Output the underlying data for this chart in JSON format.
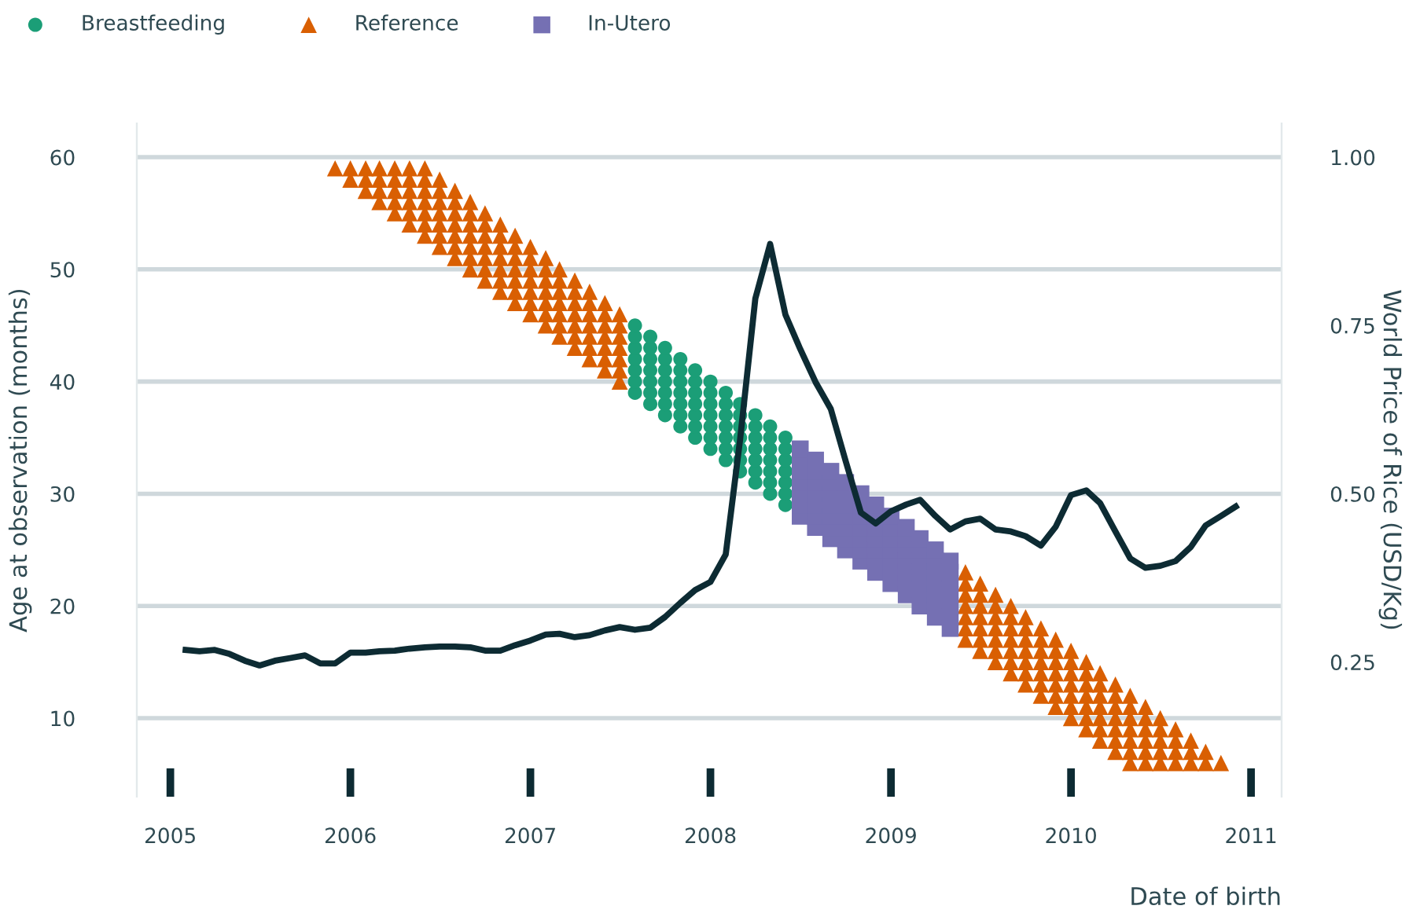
{
  "chart_data": {
    "type": "scatter",
    "xlabel": "Date of birth",
    "ylabel": "Age at observation (months)",
    "y2label": "World Price of Rice (USD/Kg)",
    "xlim": [
      "2004-10-25",
      "2011-03-04"
    ],
    "xticks": [
      {
        "value": "2005",
        "label": "2005"
      },
      {
        "value": "2006",
        "label": "2006"
      },
      {
        "value": "2007",
        "label": "2007"
      },
      {
        "value": "2008",
        "label": "2008"
      },
      {
        "value": "2009",
        "label": "2009"
      },
      {
        "value": "2010",
        "label": "2010"
      },
      {
        "value": "2011",
        "label": "2011"
      }
    ],
    "ylim": [
      3,
      63
    ],
    "yticks": [
      10,
      20,
      30,
      40,
      50,
      60
    ],
    "y2lim": [
      0.05,
      1.05
    ],
    "y2ticks": [
      {
        "value": 0.25,
        "label": "0.25"
      },
      {
        "value": 0.5,
        "label": "0.50"
      },
      {
        "value": 0.75,
        "label": "0.75"
      },
      {
        "value": 1.0,
        "label": "1.00"
      }
    ],
    "grid": "y",
    "legend": "top left",
    "series": [
      {
        "name": "Breastfeeding",
        "marker": "circle",
        "color": "#1b9e77",
        "x": [
          "2007-08",
          "2007-08",
          "2007-08",
          "2007-08",
          "2007-08",
          "2007-08",
          "2007-08",
          "2007-09",
          "2007-09",
          "2007-09",
          "2007-09",
          "2007-09",
          "2007-09",
          "2007-09",
          "2007-10",
          "2007-10",
          "2007-10",
          "2007-10",
          "2007-10",
          "2007-10",
          "2007-10",
          "2007-11",
          "2007-11",
          "2007-11",
          "2007-11",
          "2007-11",
          "2007-11",
          "2007-11",
          "2007-12",
          "2007-12",
          "2007-12",
          "2007-12",
          "2007-12",
          "2007-12",
          "2007-12",
          "2008-01",
          "2008-01",
          "2008-01",
          "2008-01",
          "2008-01",
          "2008-01",
          "2008-01",
          "2008-02",
          "2008-02",
          "2008-02",
          "2008-02",
          "2008-02",
          "2008-02",
          "2008-02",
          "2008-03",
          "2008-03",
          "2008-03",
          "2008-03",
          "2008-03",
          "2008-03",
          "2008-03",
          "2008-04",
          "2008-04",
          "2008-04",
          "2008-04",
          "2008-04",
          "2008-04",
          "2008-04",
          "2008-05",
          "2008-05",
          "2008-05",
          "2008-05",
          "2008-05",
          "2008-05",
          "2008-05",
          "2008-06",
          "2008-06",
          "2008-06",
          "2008-06",
          "2008-06",
          "2008-06",
          "2008-06"
        ],
        "values": [
          39,
          40,
          41,
          42,
          43,
          44,
          45,
          38,
          39,
          40,
          41,
          42,
          43,
          44,
          37,
          38,
          39,
          40,
          41,
          42,
          43,
          36,
          37,
          38,
          39,
          40,
          41,
          42,
          35,
          36,
          37,
          38,
          39,
          40,
          41,
          34,
          35,
          36,
          37,
          38,
          39,
          40,
          33,
          34,
          35,
          36,
          37,
          38,
          39,
          32,
          33,
          34,
          35,
          36,
          37,
          38,
          31,
          32,
          33,
          34,
          35,
          36,
          37,
          30,
          31,
          32,
          33,
          34,
          35,
          36,
          29,
          30,
          31,
          32,
          33,
          34,
          35
        ]
      },
      {
        "name": "Reference",
        "marker": "triangle",
        "color": "#d95f02",
        "x": [
          "2005-12",
          "2006-01",
          "2006-01",
          "2006-02",
          "2006-02",
          "2006-02",
          "2006-03",
          "2006-03",
          "2006-03",
          "2006-03",
          "2006-04",
          "2006-04",
          "2006-04",
          "2006-04",
          "2006-04",
          "2006-05",
          "2006-05",
          "2006-05",
          "2006-05",
          "2006-05",
          "2006-05",
          "2006-06",
          "2006-06",
          "2006-06",
          "2006-06",
          "2006-06",
          "2006-06",
          "2006-06",
          "2006-07",
          "2006-07",
          "2006-07",
          "2006-07",
          "2006-07",
          "2006-07",
          "2006-07",
          "2006-08",
          "2006-08",
          "2006-08",
          "2006-08",
          "2006-08",
          "2006-08",
          "2006-08",
          "2006-09",
          "2006-09",
          "2006-09",
          "2006-09",
          "2006-09",
          "2006-09",
          "2006-09",
          "2006-10",
          "2006-10",
          "2006-10",
          "2006-10",
          "2006-10",
          "2006-10",
          "2006-10",
          "2006-11",
          "2006-11",
          "2006-11",
          "2006-11",
          "2006-11",
          "2006-11",
          "2006-11",
          "2006-12",
          "2006-12",
          "2006-12",
          "2006-12",
          "2006-12",
          "2006-12",
          "2006-12",
          "2007-01",
          "2007-01",
          "2007-01",
          "2007-01",
          "2007-01",
          "2007-01",
          "2007-01",
          "2007-02",
          "2007-02",
          "2007-02",
          "2007-02",
          "2007-02",
          "2007-02",
          "2007-02",
          "2007-03",
          "2007-03",
          "2007-03",
          "2007-03",
          "2007-03",
          "2007-03",
          "2007-03",
          "2007-04",
          "2007-04",
          "2007-04",
          "2007-04",
          "2007-04",
          "2007-04",
          "2007-04",
          "2007-05",
          "2007-05",
          "2007-05",
          "2007-05",
          "2007-05",
          "2007-05",
          "2007-05",
          "2007-06",
          "2007-06",
          "2007-06",
          "2007-06",
          "2007-06",
          "2007-06",
          "2007-06",
          "2007-07",
          "2007-07",
          "2007-07",
          "2007-07",
          "2007-07",
          "2007-07",
          "2007-07",
          "2009-06",
          "2009-06",
          "2009-06",
          "2009-06",
          "2009-06",
          "2009-06",
          "2009-06",
          "2009-07",
          "2009-07",
          "2009-07",
          "2009-07",
          "2009-07",
          "2009-07",
          "2009-07",
          "2009-08",
          "2009-08",
          "2009-08",
          "2009-08",
          "2009-08",
          "2009-08",
          "2009-08",
          "2009-09",
          "2009-09",
          "2009-09",
          "2009-09",
          "2009-09",
          "2009-09",
          "2009-09",
          "2009-10",
          "2009-10",
          "2009-10",
          "2009-10",
          "2009-10",
          "2009-10",
          "2009-10",
          "2009-11",
          "2009-11",
          "2009-11",
          "2009-11",
          "2009-11",
          "2009-11",
          "2009-11",
          "2009-12",
          "2009-12",
          "2009-12",
          "2009-12",
          "2009-12",
          "2009-12",
          "2009-12",
          "2010-01",
          "2010-01",
          "2010-01",
          "2010-01",
          "2010-01",
          "2010-01",
          "2010-01",
          "2010-02",
          "2010-02",
          "2010-02",
          "2010-02",
          "2010-02",
          "2010-02",
          "2010-02",
          "2010-03",
          "2010-03",
          "2010-03",
          "2010-03",
          "2010-03",
          "2010-03",
          "2010-03",
          "2010-04",
          "2010-04",
          "2010-04",
          "2010-04",
          "2010-04",
          "2010-04",
          "2010-04",
          "2010-05",
          "2010-05",
          "2010-05",
          "2010-05",
          "2010-05",
          "2010-05",
          "2010-05",
          "2010-06",
          "2010-06",
          "2010-06",
          "2010-06",
          "2010-06",
          "2010-06",
          "2010-07",
          "2010-07",
          "2010-07",
          "2010-07",
          "2010-07",
          "2010-08",
          "2010-08",
          "2010-08",
          "2010-08",
          "2010-09",
          "2010-09",
          "2010-09",
          "2010-10",
          "2010-10",
          "2010-11"
        ],
        "values": [
          59,
          58,
          59,
          57,
          58,
          59,
          56,
          57,
          58,
          59,
          55,
          56,
          57,
          58,
          59,
          54,
          55,
          56,
          57,
          58,
          59,
          53,
          54,
          55,
          56,
          57,
          58,
          59,
          52,
          53,
          54,
          55,
          56,
          57,
          58,
          51,
          52,
          53,
          54,
          55,
          56,
          57,
          50,
          51,
          52,
          53,
          54,
          55,
          56,
          49,
          50,
          51,
          52,
          53,
          54,
          55,
          48,
          49,
          50,
          51,
          52,
          53,
          54,
          47,
          48,
          49,
          50,
          51,
          52,
          53,
          46,
          47,
          48,
          49,
          50,
          51,
          52,
          45,
          46,
          47,
          48,
          49,
          50,
          51,
          44,
          45,
          46,
          47,
          48,
          49,
          50,
          43,
          44,
          45,
          46,
          47,
          48,
          49,
          42,
          43,
          44,
          45,
          46,
          47,
          48,
          41,
          42,
          43,
          44,
          45,
          46,
          47,
          40,
          41,
          42,
          43,
          44,
          45,
          46,
          17,
          18,
          19,
          20,
          21,
          22,
          23,
          16,
          17,
          18,
          19,
          20,
          21,
          22,
          15,
          16,
          17,
          18,
          19,
          20,
          21,
          14,
          15,
          16,
          17,
          18,
          19,
          20,
          13,
          14,
          15,
          16,
          17,
          18,
          19,
          12,
          13,
          14,
          15,
          16,
          17,
          18,
          11,
          12,
          13,
          14,
          15,
          16,
          17,
          10,
          11,
          12,
          13,
          14,
          15,
          16,
          9,
          10,
          11,
          12,
          13,
          14,
          15,
          8,
          9,
          10,
          11,
          12,
          13,
          14,
          7,
          8,
          9,
          10,
          11,
          12,
          13,
          6,
          7,
          8,
          9,
          10,
          11,
          12,
          6,
          7,
          8,
          9,
          10,
          11,
          6,
          7,
          8,
          9,
          10,
          6,
          7,
          8,
          9,
          6,
          7,
          8,
          6,
          7,
          6
        ]
      },
      {
        "name": "In-Utero",
        "marker": "square",
        "color": "#7570b3",
        "x": [
          "2008-07",
          "2008-07",
          "2008-07",
          "2008-07",
          "2008-07",
          "2008-07",
          "2008-07",
          "2008-08",
          "2008-08",
          "2008-08",
          "2008-08",
          "2008-08",
          "2008-08",
          "2008-08",
          "2008-09",
          "2008-09",
          "2008-09",
          "2008-09",
          "2008-09",
          "2008-09",
          "2008-09",
          "2008-10",
          "2008-10",
          "2008-10",
          "2008-10",
          "2008-10",
          "2008-10",
          "2008-10",
          "2008-11",
          "2008-11",
          "2008-11",
          "2008-11",
          "2008-11",
          "2008-11",
          "2008-11",
          "2008-12",
          "2008-12",
          "2008-12",
          "2008-12",
          "2008-12",
          "2008-12",
          "2008-12",
          "2009-01",
          "2009-01",
          "2009-01",
          "2009-01",
          "2009-01",
          "2009-01",
          "2009-01",
          "2009-02",
          "2009-02",
          "2009-02",
          "2009-02",
          "2009-02",
          "2009-02",
          "2009-02",
          "2009-03",
          "2009-03",
          "2009-03",
          "2009-03",
          "2009-03",
          "2009-03",
          "2009-03",
          "2009-04",
          "2009-04",
          "2009-04",
          "2009-04",
          "2009-04",
          "2009-04",
          "2009-04",
          "2009-05",
          "2009-05",
          "2009-05",
          "2009-05",
          "2009-05",
          "2009-05",
          "2009-05"
        ],
        "values": [
          28,
          29,
          30,
          31,
          32,
          33,
          34,
          27,
          28,
          29,
          30,
          31,
          32,
          33,
          26,
          27,
          28,
          29,
          30,
          31,
          32,
          25,
          26,
          27,
          28,
          29,
          30,
          31,
          24,
          25,
          26,
          27,
          28,
          29,
          30,
          23,
          24,
          25,
          26,
          27,
          28,
          29,
          22,
          23,
          24,
          25,
          26,
          27,
          28,
          21,
          22,
          23,
          24,
          25,
          26,
          27,
          20,
          21,
          22,
          23,
          24,
          25,
          26,
          19,
          20,
          21,
          22,
          23,
          24,
          25,
          18,
          19,
          20,
          21,
          22,
          23,
          24
        ]
      },
      {
        "type": "line",
        "axis": "y2",
        "marker": "none",
        "line_style": "solid",
        "color": "#0d2b33",
        "x": [
          "2005-02",
          "2005-03",
          "2005-04",
          "2005-05",
          "2005-06",
          "2005-07",
          "2005-08",
          "2005-09",
          "2005-10",
          "2005-11",
          "2005-12",
          "2006-01",
          "2006-02",
          "2006-03",
          "2006-04",
          "2006-05",
          "2006-06",
          "2006-07",
          "2006-08",
          "2006-09",
          "2006-10",
          "2006-11",
          "2006-12",
          "2007-01",
          "2007-02",
          "2007-03",
          "2007-04",
          "2007-05",
          "2007-06",
          "2007-07",
          "2007-08",
          "2007-09",
          "2007-10",
          "2007-11",
          "2007-12",
          "2008-01",
          "2008-02",
          "2008-03",
          "2008-04",
          "2008-05",
          "2008-06",
          "2008-07",
          "2008-08",
          "2008-09",
          "2008-10",
          "2008-11",
          "2008-12",
          "2009-01",
          "2009-02",
          "2009-03",
          "2009-04",
          "2009-05",
          "2009-06",
          "2009-07",
          "2009-08",
          "2009-09",
          "2009-10",
          "2009-11",
          "2009-12",
          "2010-01",
          "2010-02",
          "2010-03",
          "2010-04",
          "2010-05",
          "2010-06",
          "2010-07",
          "2010-08",
          "2010-09",
          "2010-10",
          "2010-11",
          "2010-12"
        ],
        "values": [
          0.268,
          0.266,
          0.268,
          0.262,
          0.252,
          0.245,
          0.252,
          0.256,
          0.26,
          0.248,
          0.248,
          0.264,
          0.264,
          0.266,
          0.267,
          0.27,
          0.272,
          0.273,
          0.273,
          0.272,
          0.267,
          0.267,
          0.275,
          0.282,
          0.291,
          0.292,
          0.287,
          0.29,
          0.297,
          0.302,
          0.298,
          0.301,
          0.317,
          0.338,
          0.357,
          0.369,
          0.41,
          0.58,
          0.79,
          0.871,
          0.766,
          0.715,
          0.666,
          0.626,
          0.549,
          0.472,
          0.456,
          0.474,
          0.484,
          0.491,
          0.467,
          0.447,
          0.459,
          0.463,
          0.447,
          0.444,
          0.437,
          0.423,
          0.451,
          0.498,
          0.505,
          0.486,
          0.444,
          0.404,
          0.39,
          0.393,
          0.4,
          0.421,
          0.453,
          0.467,
          0.481
        ]
      }
    ]
  }
}
